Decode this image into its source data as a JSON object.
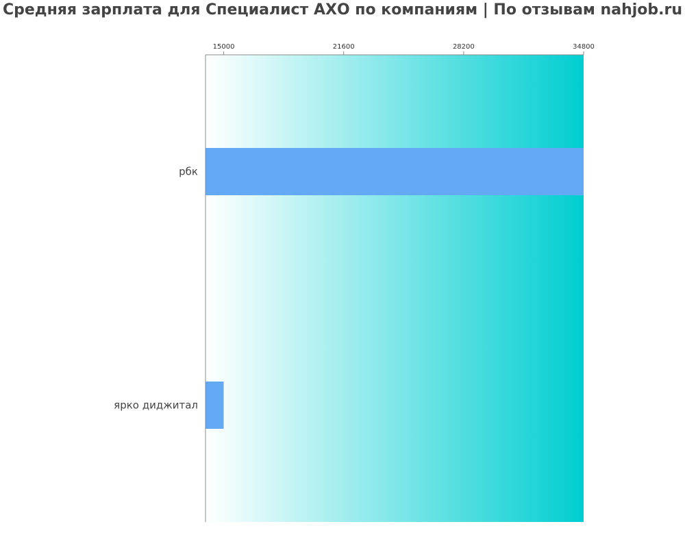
{
  "chart_data": {
    "type": "bar",
    "orientation": "horizontal",
    "title": "Средняя зарплата для Специалист АХО по компаниям  | По отзывам nahjob.ru",
    "categories": [
      "рбк",
      "ярко диджитал"
    ],
    "values": [
      34800,
      15000
    ],
    "xlim": [
      14000,
      34800
    ],
    "xticks": [
      15000,
      21600,
      28200,
      34800
    ],
    "xtick_labels": [
      "15000",
      "21600",
      "28200",
      "34800"
    ],
    "xaxis_position": "top",
    "grid": false,
    "colors": {
      "bar": "#63a9f3",
      "background_start": "#ffffff",
      "background_end": "#00ced1",
      "text": "#444444"
    }
  }
}
